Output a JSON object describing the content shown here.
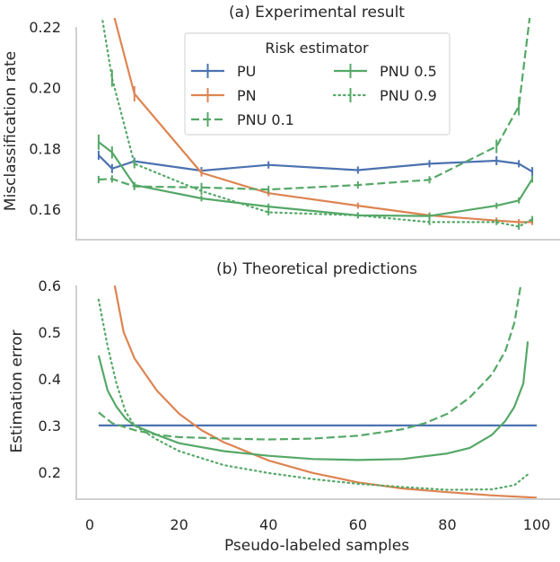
{
  "colors": {
    "PU": "#4c72b0",
    "PN": "#dd8452",
    "PNU": "#55a868",
    "spine": "#d0d0d0"
  },
  "chart_data": [
    {
      "type": "line",
      "title": "(a) Experimental result",
      "xlabel": "",
      "ylabel": "Misclassification rate",
      "xlim": [
        -3,
        104.6
      ],
      "ylim": [
        0.15,
        0.221
      ],
      "yticks": [
        0.16,
        0.18,
        0.2,
        0.22
      ],
      "ytick_labels": [
        "0.16",
        "0.18",
        "0.20",
        "0.22"
      ],
      "grid": false,
      "legend": {
        "title": "Risk estimator",
        "placement": "top-center",
        "entries": [
          "PU",
          "PN",
          "PNU 0.1",
          "PNU 0.5",
          "PNU 0.9"
        ]
      },
      "x": [
        2,
        5,
        10,
        25,
        40,
        60,
        76,
        91,
        96,
        99
      ],
      "series": [
        {
          "name": "PU",
          "color": "PU",
          "dash": "solid",
          "values": [
            0.1778,
            0.1734,
            0.1758,
            0.1727,
            0.1746,
            0.1729,
            0.175,
            0.176,
            0.175,
            0.1724
          ],
          "yerr": [
            0.0015,
            0.0015,
            0.0012,
            0.0012,
            0.0012,
            0.0012,
            0.0012,
            0.0015,
            0.0012,
            0.0015
          ]
        },
        {
          "name": "PN",
          "color": "PN",
          "dash": "solid",
          "values": [
            0.24,
            0.226,
            0.198,
            0.172,
            0.1653,
            0.1612,
            0.158,
            0.1563,
            0.1558,
            0.1558
          ],
          "yerr": [
            0.003,
            0.003,
            0.0025,
            0.0012,
            0.001,
            0.001,
            0.001,
            0.001,
            0.001,
            0.001
          ]
        },
        {
          "name": "PNU 0.1",
          "color": "PNU",
          "dash": "dashed",
          "values": [
            0.1698,
            0.17,
            0.1675,
            0.1672,
            0.1665,
            0.168,
            0.1697,
            0.1807,
            0.1939,
            0.23
          ],
          "yerr": [
            0.0012,
            0.0012,
            0.0012,
            0.0015,
            0.0012,
            0.0012,
            0.0012,
            0.0022,
            0.003,
            0.003
          ]
        },
        {
          "name": "PNU 0.5",
          "color": "PNU",
          "dash": "solid",
          "values": [
            0.1821,
            0.1787,
            0.168,
            0.1636,
            0.1609,
            0.158,
            0.1578,
            0.1612,
            0.1629,
            0.17
          ],
          "yerr": [
            0.0025,
            0.002,
            0.001,
            0.001,
            0.001,
            0.001,
            0.001,
            0.001,
            0.001,
            0.0012
          ]
        },
        {
          "name": "PNU 0.9",
          "color": "PNU",
          "dash": "dotted",
          "values": [
            0.23,
            0.2031,
            0.175,
            0.166,
            0.159,
            0.158,
            0.1558,
            0.1558,
            0.1543,
            0.1568
          ],
          "yerr": [
            0.003,
            0.0028,
            0.0015,
            0.0012,
            0.001,
            0.001,
            0.001,
            0.001,
            0.001,
            0.001
          ]
        }
      ]
    },
    {
      "type": "line",
      "title": "(b) Theoretical predictions",
      "xlabel": "Pseudo-labeled samples",
      "ylabel": "Estimation error",
      "xlim": [
        -3,
        104.6
      ],
      "ylim": [
        0.142,
        0.604
      ],
      "xticks": [
        0,
        20,
        40,
        60,
        80,
        100
      ],
      "xtick_labels": [
        "0",
        "20",
        "40",
        "60",
        "80",
        "100"
      ],
      "yticks": [
        0.2,
        0.3,
        0.4,
        0.5,
        0.6
      ],
      "ytick_labels": [
        "0.2",
        "0.3",
        "0.4",
        "0.5",
        "0.6"
      ],
      "grid": false,
      "series": [
        {
          "name": "PU",
          "color": "PU",
          "dash": "solid",
          "x": [
            2,
            100
          ],
          "values": [
            0.3,
            0.3
          ]
        },
        {
          "name": "PN",
          "color": "PN",
          "dash": "solid",
          "x": [
            5.6,
            7.6,
            10,
            15,
            20,
            25,
            30,
            40,
            50,
            60,
            70,
            80,
            90,
            100
          ],
          "values": [
            0.6,
            0.5,
            0.444,
            0.375,
            0.325,
            0.29,
            0.264,
            0.225,
            0.198,
            0.178,
            0.165,
            0.157,
            0.15,
            0.145
          ]
        },
        {
          "name": "PNU 0.1",
          "color": "PNU",
          "dash": "dashed",
          "x": [
            2,
            5,
            10,
            15,
            20,
            30,
            40,
            50,
            60,
            70,
            75,
            80,
            85,
            90,
            93,
            95,
            96.4
          ],
          "values": [
            0.328,
            0.305,
            0.29,
            0.28,
            0.275,
            0.272,
            0.27,
            0.272,
            0.278,
            0.292,
            0.305,
            0.325,
            0.36,
            0.41,
            0.46,
            0.52,
            0.6
          ]
        },
        {
          "name": "PNU 0.5",
          "color": "PNU",
          "dash": "solid",
          "x": [
            2,
            4,
            6,
            8,
            10,
            15,
            20,
            30,
            40,
            50,
            60,
            70,
            80,
            85,
            90,
            93,
            95,
            97,
            98
          ],
          "values": [
            0.45,
            0.375,
            0.34,
            0.315,
            0.3,
            0.28,
            0.262,
            0.245,
            0.235,
            0.228,
            0.226,
            0.228,
            0.24,
            0.252,
            0.28,
            0.31,
            0.34,
            0.39,
            0.48
          ]
        },
        {
          "name": "PNU 0.9",
          "color": "PNU",
          "dash": "dotted",
          "x": [
            2,
            4,
            6,
            8,
            10,
            15,
            20,
            30,
            40,
            50,
            60,
            70,
            80,
            90,
            95,
            98
          ],
          "values": [
            0.57,
            0.47,
            0.39,
            0.33,
            0.3,
            0.27,
            0.245,
            0.215,
            0.198,
            0.185,
            0.175,
            0.168,
            0.162,
            0.163,
            0.172,
            0.195
          ]
        }
      ]
    }
  ]
}
